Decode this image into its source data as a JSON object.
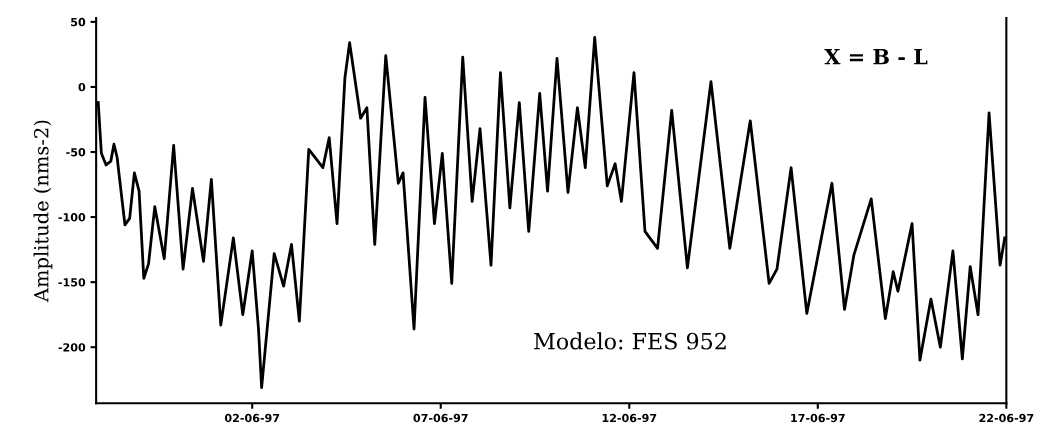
{
  "chart_data": {
    "type": "line",
    "ylabel": "Amplitude (nms-2)",
    "annotations": [
      "X = B - L",
      "Modelo: FES 952"
    ],
    "x": [
      "1997-05-28T22:00",
      "1997-05-29T00:00",
      "1997-05-29T03:00",
      "1997-05-29T06:00",
      "1997-05-29T08:00",
      "1997-05-29T10:00",
      "1997-05-29T15:00",
      "1997-05-29T18:00",
      "1997-05-29T21:00",
      "1997-05-30T00:00",
      "1997-05-30T03:00",
      "1997-05-30T06:00",
      "1997-05-30T10:00",
      "1997-05-30T16:00",
      "1997-05-30T22:00",
      "1997-05-31T04:00",
      "1997-05-31T10:00",
      "1997-05-31T17:00",
      "1997-05-31T22:00",
      "1997-06-01T04:00",
      "1997-06-01T12:00",
      "1997-06-01T18:00",
      "1997-06-02T00:00",
      "1997-06-02T04:00",
      "1997-06-02T06:00",
      "1997-06-02T14:00",
      "1997-06-02T20:00",
      "1997-06-03T01:00",
      "1997-06-03T06:00",
      "1997-06-03T12:00",
      "1997-06-03T21:00",
      "1997-06-04T01:00",
      "1997-06-04T06:00",
      "1997-06-04T11:00",
      "1997-06-04T14:00",
      "1997-06-04T21:00",
      "1997-06-05T01:00",
      "1997-06-05T06:00",
      "1997-06-05T13:00",
      "1997-06-05T21:00",
      "1997-06-06T00:00",
      "1997-06-06T07:00",
      "1997-06-06T14:00",
      "1997-06-06T20:00",
      "1997-06-07T01:00",
      "1997-06-07T07:00",
      "1997-06-07T14:00",
      "1997-06-07T20:00",
      "1997-06-08T01:00",
      "1997-06-08T08:00",
      "1997-06-08T14:00",
      "1997-06-08T20:00",
      "1997-06-09T02:00",
      "1997-06-09T08:00",
      "1997-06-09T15:00",
      "1997-06-09T20:00",
      "1997-06-10T02:00",
      "1997-06-10T09:00",
      "1997-06-10T15:00",
      "1997-06-10T20:00",
      "1997-06-11T02:00",
      "1997-06-11T10:00",
      "1997-06-11T15:00",
      "1997-06-11T19:00",
      "1997-06-12T03:00",
      "1997-06-12T10:00",
      "1997-06-12T18:00",
      "1997-06-13T03:00",
      "1997-06-13T13:00",
      "1997-06-14T04:00",
      "1997-06-14T16:00",
      "1997-06-15T05:00",
      "1997-06-15T17:00",
      "1997-06-15T22:00",
      "1997-06-16T07:00",
      "1997-06-16T17:00",
      "1997-06-17T09:00",
      "1997-06-17T17:00",
      "1997-06-17T23:00",
      "1997-06-18T10:00",
      "1997-06-18T19:00",
      "1997-06-19T00:00",
      "1997-06-19T03:00",
      "1997-06-19T12:00",
      "1997-06-19T17:00",
      "1997-06-20T00:00",
      "1997-06-20T06:00",
      "1997-06-20T14:00",
      "1997-06-20T20:00",
      "1997-06-21T01:00",
      "1997-06-21T06:00",
      "1997-06-21T13:00",
      "1997-06-21T20:00",
      "1997-06-21T23:00"
    ],
    "series": [
      {
        "color": "#000000",
        "values": [
          -12,
          -51,
          -60,
          -57,
          -44,
          -54,
          -106,
          -101,
          -66,
          -80,
          -147,
          -136,
          -92,
          -132,
          -45,
          -140,
          -78,
          -134,
          -71,
          -183,
          -116,
          -175,
          -126,
          -186,
          -231,
          -128,
          -153,
          -121,
          -180,
          -48,
          -62,
          -39,
          -105,
          7,
          34,
          -24,
          -16,
          -121,
          24,
          -74,
          -66,
          -186,
          -8,
          -105,
          -51,
          -151,
          23,
          -88,
          -32,
          -137,
          11,
          -93,
          -12,
          -111,
          -5,
          -80,
          22,
          -81,
          -16,
          -62,
          38,
          -76,
          -59,
          -88,
          11,
          -111,
          -124,
          -18,
          -139,
          4,
          -124,
          -26,
          -151,
          -140,
          -62,
          -174,
          -74,
          -171,
          -129,
          -86,
          -178,
          -142,
          -157,
          -105,
          -210,
          -163,
          -200,
          -126,
          -209,
          -138,
          -175,
          -20,
          -137,
          -116
        ]
      }
    ],
    "xlim": [
      "1997-05-28T20:40",
      "1997-06-22T00:00"
    ],
    "xticks": [
      {
        "value": "1997-06-02",
        "label": "02-06-97"
      },
      {
        "value": "1997-06-07",
        "label": "07-06-97"
      },
      {
        "value": "1997-06-12",
        "label": "12-06-97"
      },
      {
        "value": "1997-06-17",
        "label": "17-06-97"
      },
      {
        "value": "1997-06-22",
        "label": "22-06-97"
      }
    ],
    "ylim": [
      -243,
      53
    ],
    "yticks": [
      50,
      0,
      -50,
      -100,
      -150,
      -200
    ],
    "grid": false,
    "legend": false,
    "line_style": "solid",
    "marker": "none"
  }
}
